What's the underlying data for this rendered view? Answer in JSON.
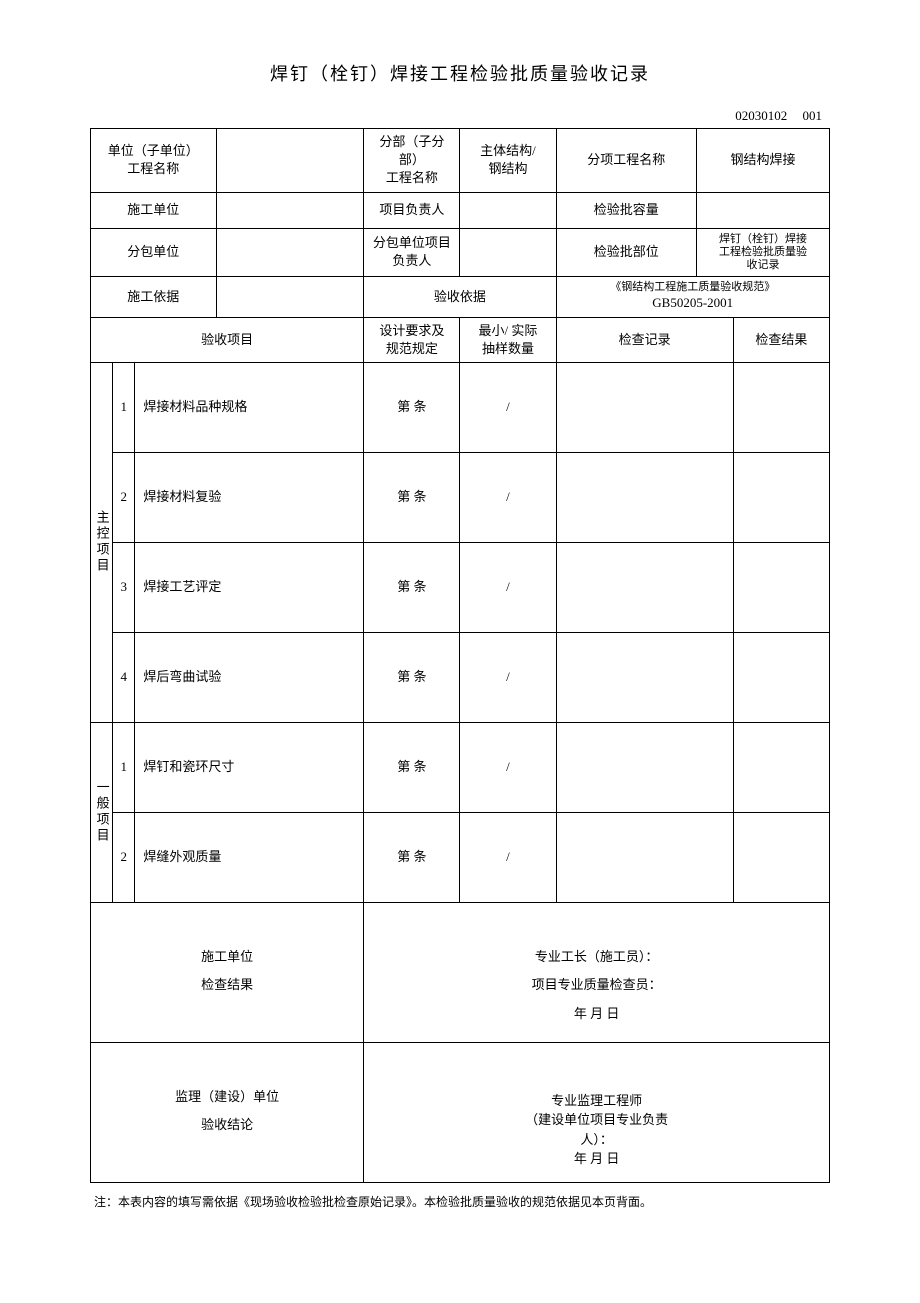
{
  "title": "焊钉（栓钉）焊接工程检验批质量验收记录",
  "doc_number": {
    "code": "02030102",
    "seq": "001"
  },
  "header": {
    "r1": {
      "l1": "单位（子单位）\n工程名称",
      "v1": "",
      "l2": "分部（子分\n部）\n工程名称",
      "v2": "主体结构/\n钢结构",
      "l3": "分项工程名称",
      "v3": "钢结构焊接"
    },
    "r2": {
      "l1": "施工单位",
      "v1": "",
      "l2": "项目负责人",
      "v2": "",
      "l3": "检验批容量",
      "v3": ""
    },
    "r3": {
      "l1": "分包单位",
      "v1": "",
      "l2": "分包单位项目\n负责人",
      "v2": "",
      "l3": "检验批部位",
      "v3": "焊钉（栓钉）焊接\n工程检验批质量验\n收记录"
    },
    "r4": {
      "l1": "施工依据",
      "v1": "",
      "l2": "验收依据",
      "v2_top": "《钢结构工程施工质量验收规范》",
      "v2_bot": "GB50205-2001"
    }
  },
  "cols": {
    "c1": "验收项目",
    "c2": "设计要求及\n规范规定",
    "c3": "最小/ 实际\n抽样数量",
    "c4": "检查记录",
    "c5": "检查结果"
  },
  "sections": {
    "main_label": "主控项目",
    "gen_label": "一般项目"
  },
  "main_items": [
    {
      "idx": "1",
      "name": "焊接材料品种规格",
      "spec": "第   条",
      "qty": "/",
      "rec": "",
      "res": ""
    },
    {
      "idx": "2",
      "name": "焊接材料复验",
      "spec": "第   条",
      "qty": "/",
      "rec": "",
      "res": ""
    },
    {
      "idx": "3",
      "name": "焊接工艺评定",
      "spec": "第   条",
      "qty": "/",
      "rec": "",
      "res": ""
    },
    {
      "idx": "4",
      "name": "焊后弯曲试验",
      "spec": "第   条",
      "qty": "/",
      "rec": "",
      "res": ""
    }
  ],
  "gen_items": [
    {
      "idx": "1",
      "name": "焊钉和瓷环尺寸",
      "spec": "第   条",
      "qty": "/",
      "rec": "",
      "res": ""
    },
    {
      "idx": "2",
      "name": "焊缝外观质量",
      "spec": "第   条",
      "qty": "/",
      "rec": "",
      "res": ""
    }
  ],
  "footer": {
    "block1_label": "施工单位\n检查结果",
    "block1_lines": {
      "a": "专业工长（施工员）：",
      "b": "项目专业质量检查员：",
      "c": "年      月      日"
    },
    "block2_label": "监理（建设）单位\n验收结论",
    "block2_lines": {
      "a": "专业监理工程师",
      "b": "（建设单位项目专业负责",
      "c": "人）：",
      "d": "年      月      日"
    }
  },
  "footnote": "注：本表内容的填写需依据《现场验收检验批检查原始记录》。本检验批质量验收的规范依据见本页背面。"
}
